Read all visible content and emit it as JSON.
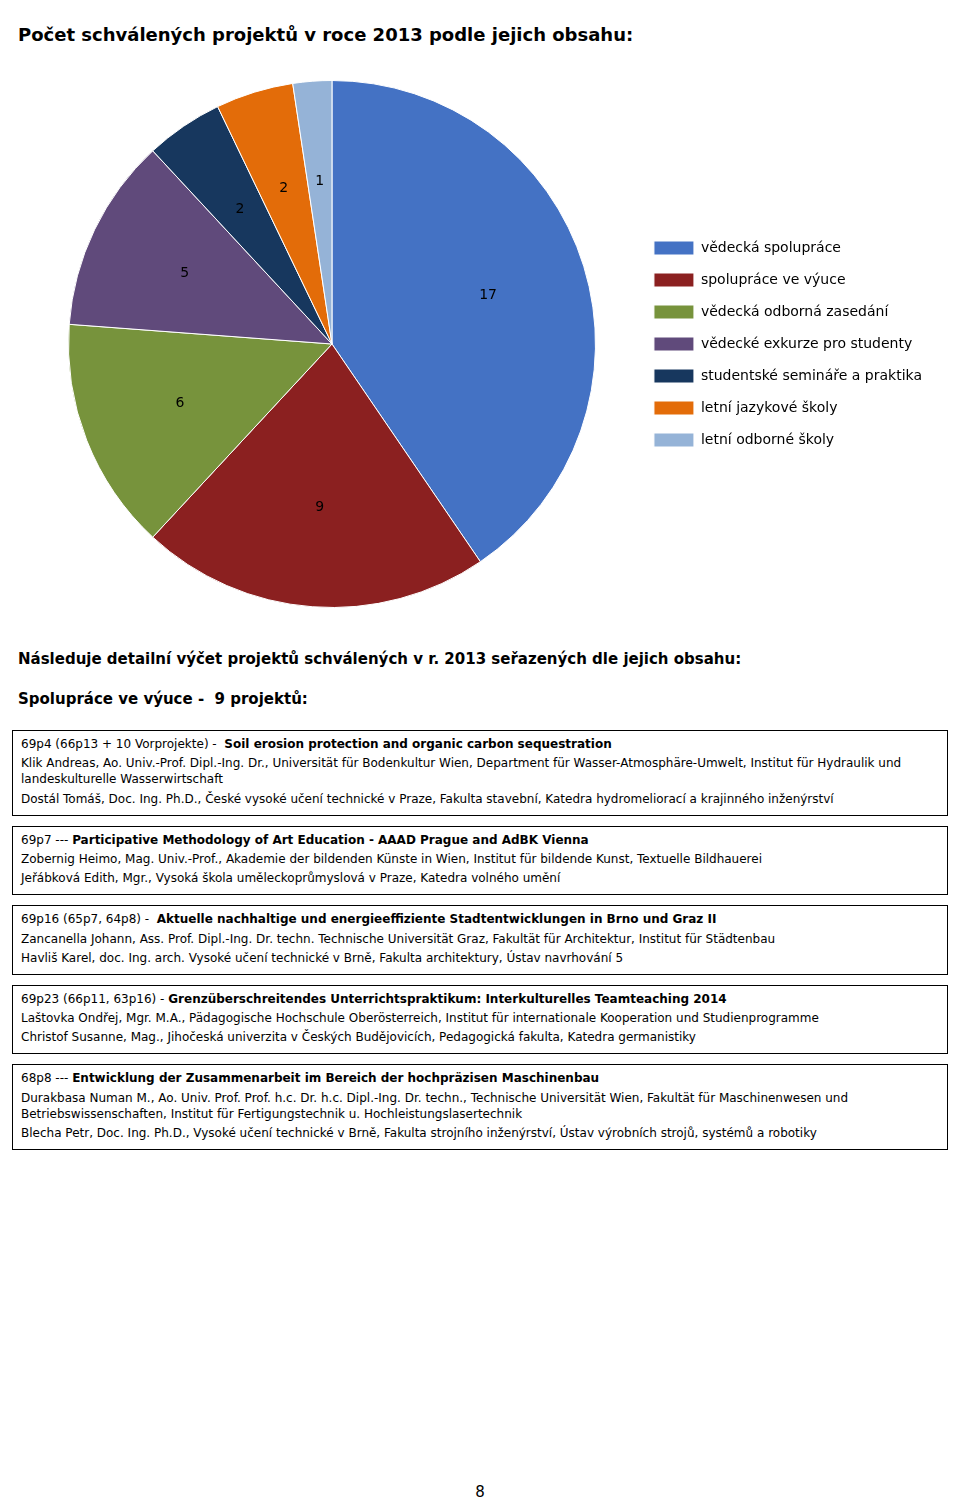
{
  "chart_data": {
    "type": "pie",
    "title": "Počet schválených projektů v roce 2013 podle jejich obsahu:",
    "categories": [
      "vědecká spolupráce",
      "spolupráce ve výuce",
      "vědecká odborná zasedání",
      "vědecké exkurze pro studenty",
      "studentské semináře a praktika",
      "letní jazykové školy",
      "letní odborné školy"
    ],
    "values": [
      17,
      9,
      6,
      5,
      2,
      2,
      1
    ],
    "colors": [
      "#4472C4",
      "#8B2020",
      "#77933C",
      "#604A7B",
      "#17375E",
      "#E36C09",
      "#95B3D7"
    ],
    "data_labels": true,
    "legend": "right",
    "subtitle": "Následuje detailní výčet projektů schválených v r. 2013 seřazených dle jejich obsahu:",
    "section_title": "Spolupráce ve výuce -  9 projektů:",
    "boxes": [
      {
        "prefix": "69p4 (66p13 + 10 Vorprojekte) -  ",
        "bold": "Soil erosion protection and organic carbon sequestration",
        "rows": [
          "Klik Andreas, Ao. Univ.-Prof. Dipl.-Ing. Dr., Universität für Bodenkultur Wien, Department für Wasser-Atmosphäre-Umwelt, Institut für Hydraulik und landeskulturelle Wasserwirtschaft",
          "Dostál Tomáš, Doc. Ing. Ph.D., České vysoké učení technické v Praze, Fakulta stavební, Katedra hydromeliorací a krajinného inženýrství"
        ]
      },
      {
        "prefix": "69p7 --- ",
        "bold": "Participative Methodology of Art Education - AAAD Prague and AdBK Vienna",
        "rows": [
          "Zobernig Heimo, Mag. Univ.-Prof., Akademie der bildenden Künste in Wien, Institut für bildende Kunst, Textuelle Bildhauerei",
          "Jeřábková Edith, Mgr., Vysoká škola uměleckoprůmyslová v Praze, Katedra volného umění"
        ]
      },
      {
        "prefix": "69p16 (65p7, 64p8) -  ",
        "bold": "Aktuelle nachhaltige und energieeffiziente Stadtentwicklungen in Brno und Graz II",
        "rows": [
          "Zancanella Johann, Ass. Prof. Dipl.-Ing. Dr. techn. Technische Universität Graz, Fakultät für Architektur, Institut für Städtenbau",
          "Havliš Karel, doc. Ing. arch. Vysoké učení technické v Brně, Fakulta architektury, Ústav navrhování 5"
        ]
      },
      {
        "prefix": "69p23 (66p11, 63p16) - ",
        "bold": "Grenzüberschreitendes Unterrichtspraktikum: Interkulturelles Teamteaching 2014",
        "rows": [
          "Laštovka Ondřej, Mgr. M.A., Pädagogische Hochschule Oberösterreich, Institut für internationale Kooperation und Studienprogramme",
          "Christof Susanne, Mag., Jihočeská univerzita v Českých Budějovicích, Pedagogická fakulta, Katedra germanistiky"
        ]
      },
      {
        "prefix": "68p8 --- ",
        "bold": "Entwicklung der Zusammenarbeit im Bereich der hochpräzisen Maschinenbau",
        "rows": [
          "Durakbasa Numan M., Ao. Univ. Prof. Prof. h.c. Dr. h.c. Dipl.-Ing. Dr. techn., Technische Universität Wien, Fakultät für Maschinenwesen und Betriebswissenschaften, Institut für Fertigungstechnik u. Hochleistungslasertechnik",
          "Blecha Petr, Doc. Ing. Ph.D., Vysoké učení technické v Brně, Fakulta strojního inženýrství, Ústav výrobních strojů, systémů a robotiky"
        ]
      }
    ],
    "page_number": "8"
  }
}
